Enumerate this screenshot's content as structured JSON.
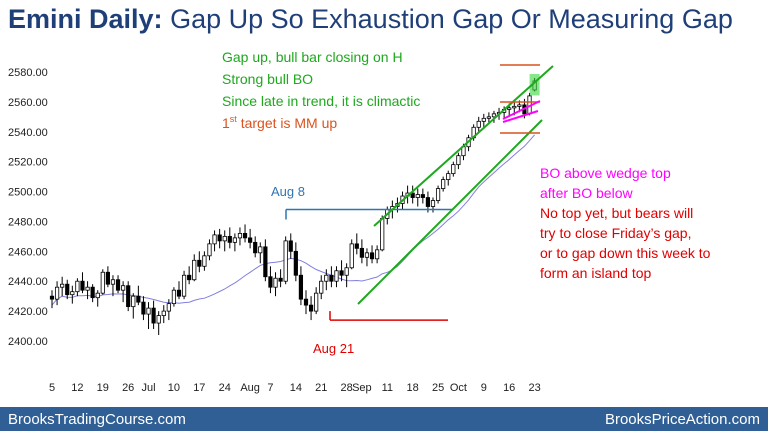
{
  "title": {
    "bold": "Emini Daily:",
    "rest": "Gap Up So Exhaustion Gap Or Measuring Gap"
  },
  "footer": {
    "left": "BrooksTradingCourse.com",
    "right": "BrooksPriceAction.com"
  },
  "colors": {
    "footer_bg": "#2f5f95",
    "title": "#1f3f78",
    "green": "#1ea81e",
    "red": "#e00000",
    "magenta": "#ff00ff",
    "blue": "#2e75b6",
    "orange": "#d9531e",
    "ma": "#8080e0"
  },
  "annotations": {
    "green_lines": [
      "Gap up, bull bar closing on H",
      "Strong bull BO",
      "Since late in trend, it is climactic"
    ],
    "target_prefix": "1",
    "target_sup": "st",
    "target_rest": " target is MM up",
    "magenta_lines": [
      "BO above wedge top",
      "after BO below"
    ],
    "red_lines": [
      "No top yet, but bears will",
      "try to close Friday’s gap,",
      "or to gap down this week to",
      "form an island top"
    ],
    "aug8": "Aug 8",
    "aug21": "Aug 21"
  },
  "chart_data": {
    "type": "candlestick",
    "ylim": [
      2395,
      2595
    ],
    "yticks": [
      2400,
      2420,
      2440,
      2460,
      2480,
      2500,
      2520,
      2540,
      2560,
      2580
    ],
    "x_tick_labels": [
      "5",
      "12",
      "19",
      "26",
      "Jul",
      "10",
      "17",
      "24",
      "Aug",
      "7",
      "14",
      "21",
      "28",
      "Sep",
      "11",
      "18",
      "25",
      "Oct",
      "9",
      "16",
      "23"
    ],
    "x_tick_index": [
      0,
      5,
      10,
      15,
      19,
      24,
      29,
      34,
      39,
      43,
      48,
      53,
      58,
      61,
      66,
      71,
      76,
      80,
      85,
      90,
      95
    ],
    "levels": {
      "aug8_high": 2488,
      "aug21_low": 2414,
      "mm_target": 2587,
      "wedge_top": 2562,
      "channel_bottom": 2540
    },
    "bars": [
      [
        2430,
        2434,
        2422,
        2428
      ],
      [
        2428,
        2440,
        2424,
        2436
      ],
      [
        2436,
        2443,
        2430,
        2438
      ],
      [
        2438,
        2441,
        2428,
        2431
      ],
      [
        2431,
        2437,
        2425,
        2433
      ],
      [
        2433,
        2442,
        2430,
        2440
      ],
      [
        2440,
        2446,
        2432,
        2434
      ],
      [
        2434,
        2440,
        2428,
        2436
      ],
      [
        2436,
        2438,
        2426,
        2429
      ],
      [
        2429,
        2434,
        2423,
        2432
      ],
      [
        2432,
        2448,
        2431,
        2446
      ],
      [
        2446,
        2450,
        2436,
        2438
      ],
      [
        2438,
        2444,
        2430,
        2441
      ],
      [
        2441,
        2444,
        2432,
        2434
      ],
      [
        2434,
        2440,
        2426,
        2437
      ],
      [
        2437,
        2440,
        2420,
        2423
      ],
      [
        2423,
        2432,
        2415,
        2430
      ],
      [
        2430,
        2437,
        2424,
        2426
      ],
      [
        2426,
        2430,
        2414,
        2418
      ],
      [
        2418,
        2426,
        2408,
        2422
      ],
      [
        2422,
        2427,
        2408,
        2412
      ],
      [
        2412,
        2420,
        2404,
        2417
      ],
      [
        2417,
        2424,
        2412,
        2420
      ],
      [
        2420,
        2428,
        2414,
        2425
      ],
      [
        2425,
        2436,
        2423,
        2434
      ],
      [
        2434,
        2440,
        2428,
        2430
      ],
      [
        2430,
        2447,
        2428,
        2444
      ],
      [
        2444,
        2450,
        2438,
        2441
      ],
      [
        2441,
        2458,
        2440,
        2454
      ],
      [
        2454,
        2460,
        2446,
        2450
      ],
      [
        2450,
        2460,
        2447,
        2457
      ],
      [
        2457,
        2468,
        2454,
        2465
      ],
      [
        2465,
        2474,
        2460,
        2471
      ],
      [
        2471,
        2475,
        2462,
        2467
      ],
      [
        2467,
        2474,
        2460,
        2470
      ],
      [
        2470,
        2476,
        2462,
        2466
      ],
      [
        2466,
        2472,
        2460,
        2469
      ],
      [
        2469,
        2476,
        2464,
        2472
      ],
      [
        2472,
        2478,
        2466,
        2469
      ],
      [
        2469,
        2475,
        2462,
        2466
      ],
      [
        2466,
        2470,
        2456,
        2459
      ],
      [
        2459,
        2466,
        2452,
        2463
      ],
      [
        2463,
        2468,
        2440,
        2443
      ],
      [
        2443,
        2450,
        2432,
        2436
      ],
      [
        2436,
        2446,
        2430,
        2442
      ],
      [
        2442,
        2448,
        2436,
        2440
      ],
      [
        2440,
        2470,
        2438,
        2467
      ],
      [
        2467,
        2472,
        2455,
        2460
      ],
      [
        2460,
        2466,
        2440,
        2444
      ],
      [
        2444,
        2450,
        2424,
        2428
      ],
      [
        2428,
        2434,
        2418,
        2424
      ],
      [
        2424,
        2430,
        2414,
        2420
      ],
      [
        2420,
        2436,
        2418,
        2432
      ],
      [
        2432,
        2444,
        2428,
        2440
      ],
      [
        2440,
        2448,
        2434,
        2444
      ],
      [
        2444,
        2450,
        2436,
        2440
      ],
      [
        2440,
        2450,
        2436,
        2447
      ],
      [
        2447,
        2454,
        2440,
        2444
      ],
      [
        2444,
        2452,
        2436,
        2449
      ],
      [
        2449,
        2468,
        2448,
        2465
      ],
      [
        2465,
        2472,
        2458,
        2462
      ],
      [
        2462,
        2468,
        2452,
        2456
      ],
      [
        2456,
        2462,
        2450,
        2459
      ],
      [
        2459,
        2464,
        2452,
        2455
      ],
      [
        2455,
        2464,
        2452,
        2461
      ],
      [
        2461,
        2484,
        2460,
        2482
      ],
      [
        2482,
        2490,
        2478,
        2488
      ],
      [
        2488,
        2494,
        2482,
        2490
      ],
      [
        2490,
        2496,
        2486,
        2492
      ],
      [
        2492,
        2500,
        2488,
        2497
      ],
      [
        2497,
        2504,
        2492,
        2499
      ],
      [
        2499,
        2504,
        2492,
        2496
      ],
      [
        2496,
        2502,
        2490,
        2498
      ],
      [
        2498,
        2502,
        2492,
        2496
      ],
      [
        2496,
        2500,
        2486,
        2490
      ],
      [
        2490,
        2496,
        2486,
        2494
      ],
      [
        2494,
        2504,
        2492,
        2502
      ],
      [
        2502,
        2510,
        2500,
        2508
      ],
      [
        2508,
        2514,
        2504,
        2512
      ],
      [
        2512,
        2520,
        2510,
        2518
      ],
      [
        2518,
        2526,
        2515,
        2524
      ],
      [
        2524,
        2532,
        2521,
        2530
      ],
      [
        2530,
        2538,
        2527,
        2536
      ],
      [
        2536,
        2545,
        2534,
        2543
      ],
      [
        2543,
        2550,
        2540,
        2547
      ],
      [
        2547,
        2552,
        2542,
        2549
      ],
      [
        2549,
        2553,
        2545,
        2550
      ],
      [
        2550,
        2554,
        2546,
        2552
      ],
      [
        2552,
        2556,
        2548,
        2553
      ],
      [
        2553,
        2557,
        2549,
        2555
      ],
      [
        2555,
        2559,
        2550,
        2556
      ],
      [
        2556,
        2560,
        2551,
        2557
      ],
      [
        2557,
        2561,
        2553,
        2558
      ],
      [
        2558,
        2562,
        2549,
        2552
      ],
      [
        2552,
        2566,
        2551,
        2564
      ],
      [
        2568,
        2576,
        2567,
        2574
      ]
    ]
  }
}
